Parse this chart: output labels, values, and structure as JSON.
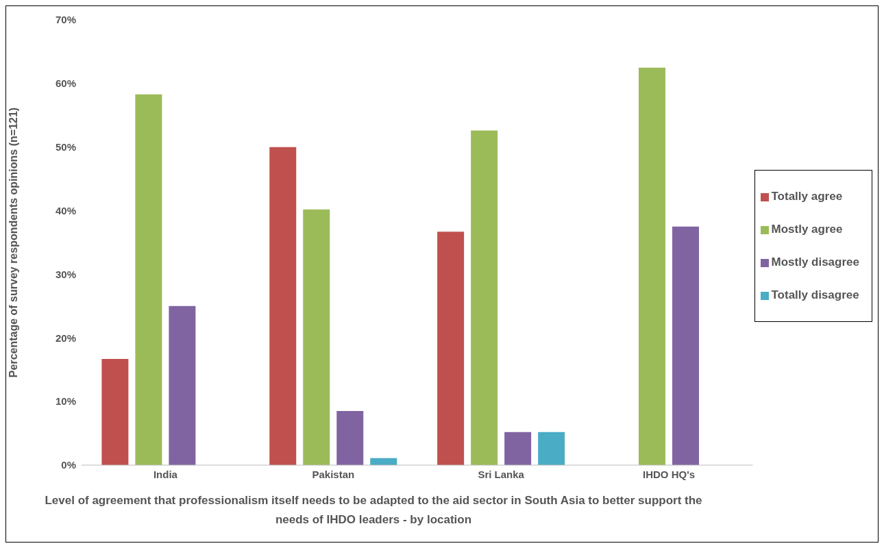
{
  "chart_data": {
    "type": "bar",
    "xlabel": "Level of agreement that professionalism itself needs to be adapted to the aid sector in South Asia to better support the needs of IHDO leaders - by location",
    "ylabel": "Percentage of survey respondents opinions (n=121)",
    "categories": [
      "India",
      "Pakistan",
      "Sri Lanka",
      "IHDO HQ's"
    ],
    "series": [
      {
        "name": "Totally agree",
        "color": "#c0504d",
        "values": [
          16.7,
          50,
          36.7,
          0
        ]
      },
      {
        "name": "Mostly agree",
        "color": "#9bbb59",
        "values": [
          58.3,
          40.2,
          52.6,
          62.5
        ]
      },
      {
        "name": "Mostly disagree",
        "color": "#8064a2",
        "values": [
          25,
          8.5,
          5.2,
          37.5
        ]
      },
      {
        "name": "Totally disagree",
        "color": "#4bacc6",
        "values": [
          0,
          1.1,
          5.2,
          0
        ]
      }
    ],
    "ylim": [
      0,
      70
    ],
    "yticks": [
      {
        "value": 0,
        "label": "0%"
      },
      {
        "value": 10,
        "label": "10%"
      },
      {
        "value": 20,
        "label": "20%"
      },
      {
        "value": 30,
        "label": "30%"
      },
      {
        "value": 40,
        "label": "40%"
      },
      {
        "value": 50,
        "label": "50%"
      },
      {
        "value": 60,
        "label": "60%"
      },
      {
        "value": 70,
        "label": "70%"
      }
    ],
    "grid": false,
    "legend": "right"
  }
}
